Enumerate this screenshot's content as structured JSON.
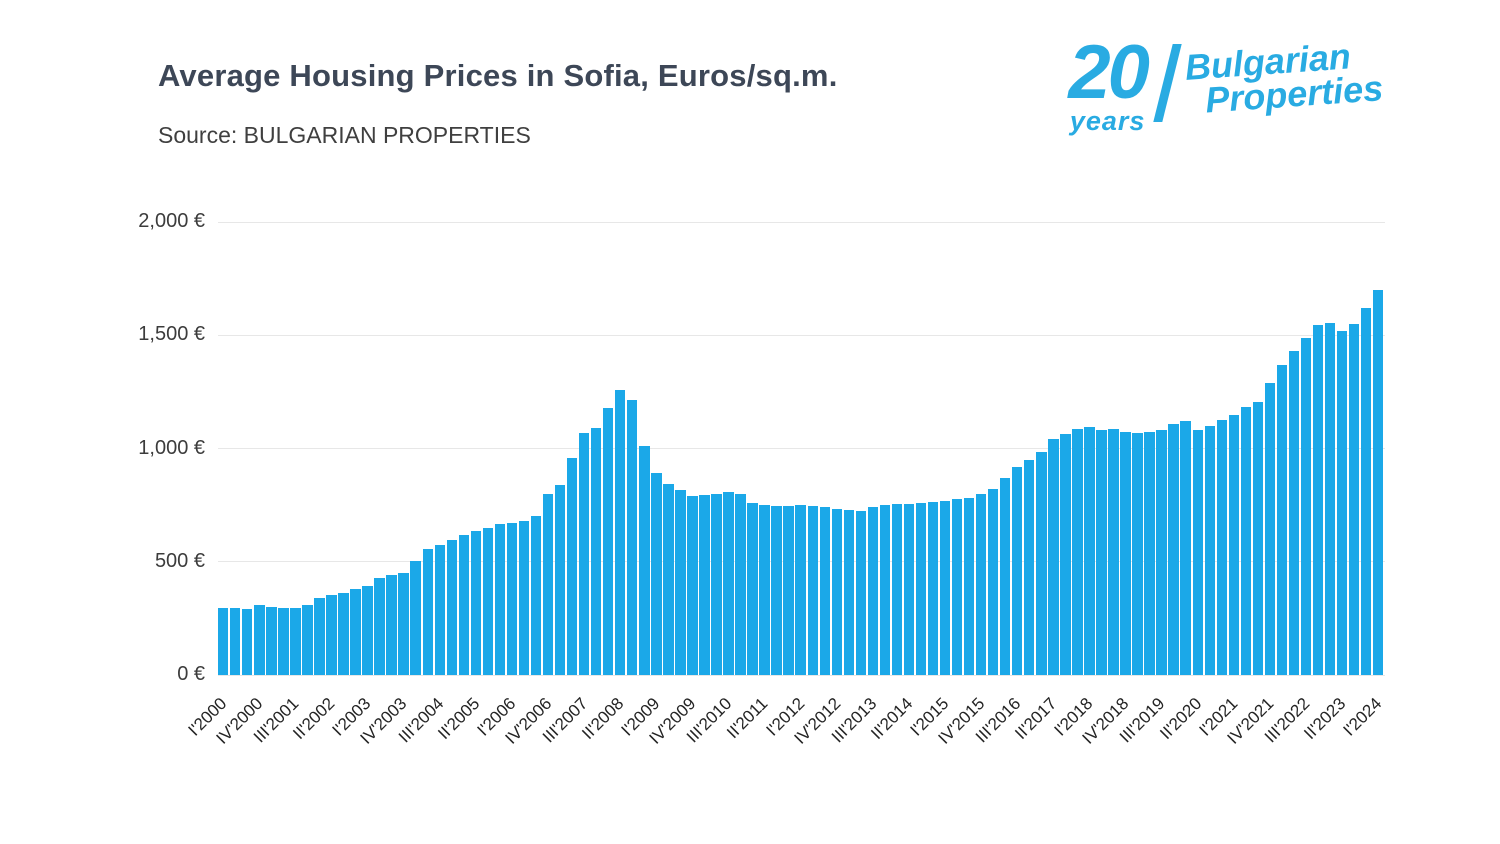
{
  "header": {
    "title": "Average Housing Prices in Sofia, Euros/sq.m.",
    "source": "Source: BULGARIAN PROPERTIES"
  },
  "logo": {
    "number": "20",
    "years": "years",
    "line1": "Bulgarian",
    "line2": "Properties"
  },
  "colors": {
    "bar": "#1ba8e8",
    "title": "#3d4757",
    "text": "#333333",
    "grid": "#e7e7e7",
    "logo_blue": "#29abe2"
  },
  "chart_data": {
    "type": "bar",
    "title": "Average Housing Prices in Sofia, Euros/sq.m.",
    "subtitle": "Source: BULGARIAN PROPERTIES",
    "xlabel": "",
    "ylabel": "",
    "ylim": [
      0,
      2000
    ],
    "grid": true,
    "legend": false,
    "label_every": 3,
    "yticks": [
      {
        "value": 0,
        "label": "0 €"
      },
      {
        "value": 500,
        "label": "500 €"
      },
      {
        "value": 1000,
        "label": "1,000 €"
      },
      {
        "value": 1500,
        "label": "1,500 €"
      },
      {
        "value": 2000,
        "label": "2,000 €"
      }
    ],
    "categories": [
      "I'2000",
      "II'2000",
      "III'2000",
      "IV'2000",
      "I'2001",
      "II'2001",
      "III'2001",
      "IV'2001",
      "I'2002",
      "II'2002",
      "III'2002",
      "IV'2002",
      "I'2003",
      "II'2003",
      "III'2003",
      "IV'2003",
      "I'2004",
      "II'2004",
      "III'2004",
      "IV'2004",
      "I'2005",
      "II'2005",
      "III'2005",
      "IV'2005",
      "I'2006",
      "II'2006",
      "III'2006",
      "IV'2006",
      "I'2007",
      "II'2007",
      "III'2007",
      "IV'2007",
      "I'2008",
      "II'2008",
      "III'2008",
      "IV'2008",
      "I'2009",
      "II'2009",
      "III'2009",
      "IV'2009",
      "I'2010",
      "II'2010",
      "III'2010",
      "IV'2010",
      "I'2011",
      "II'2011",
      "III'2011",
      "IV'2011",
      "I'2012",
      "II'2012",
      "III'2012",
      "IV'2012",
      "I'2013",
      "II'2013",
      "III'2013",
      "IV'2013",
      "I'2014",
      "II'2014",
      "III'2014",
      "IV'2014",
      "I'2015",
      "II'2015",
      "III'2015",
      "IV'2015",
      "I'2016",
      "II'2016",
      "III'2016",
      "IV'2016",
      "I'2017",
      "II'2017",
      "III'2017",
      "IV'2017",
      "I'2018",
      "II'2018",
      "III'2018",
      "IV'2018",
      "I'2019",
      "II'2019",
      "III'2019",
      "IV'2019",
      "I'2020",
      "II'2020",
      "III'2020",
      "IV'2020",
      "I'2021",
      "II'2021",
      "III'2021",
      "IV'2021",
      "I'2022",
      "II'2022",
      "III'2022",
      "IV'2022",
      "I'2023",
      "II'2023",
      "III'2023",
      "IV'2023",
      "I'2024"
    ],
    "values": [
      295,
      295,
      290,
      310,
      300,
      298,
      296,
      310,
      340,
      352,
      360,
      378,
      395,
      430,
      442,
      452,
      505,
      555,
      572,
      595,
      618,
      638,
      648,
      665,
      670,
      682,
      700,
      800,
      838,
      958,
      1070,
      1092,
      1180,
      1260,
      1215,
      1010,
      890,
      845,
      815,
      790,
      795,
      798,
      810,
      800,
      758,
      750,
      745,
      748,
      752,
      745,
      740,
      735,
      728,
      725,
      740,
      750,
      755,
      755,
      760,
      765,
      768,
      775,
      782,
      800,
      822,
      870,
      920,
      950,
      985,
      1040,
      1062,
      1088,
      1095,
      1080,
      1085,
      1075,
      1070,
      1075,
      1080,
      1108,
      1120,
      1080,
      1100,
      1128,
      1150,
      1185,
      1205,
      1290,
      1370,
      1432,
      1490,
      1545,
      1552,
      1520,
      1548,
      1620,
      1700
    ]
  }
}
